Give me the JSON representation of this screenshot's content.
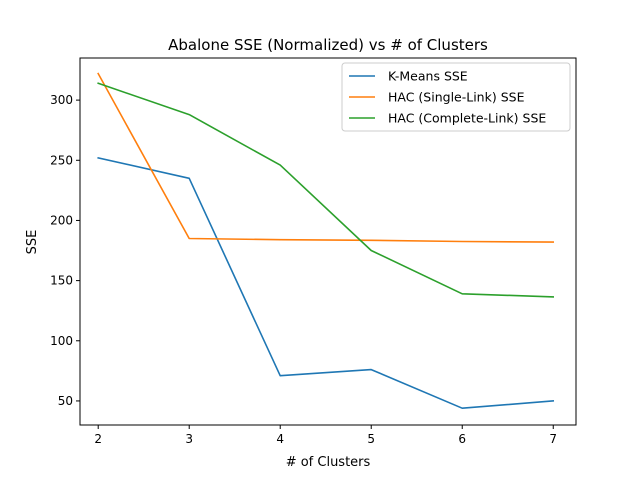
{
  "chart_data": {
    "type": "line",
    "title": "Abalone SSE (Normalized) vs # of Clusters",
    "xlabel": "# of Clusters",
    "ylabel": "SSE",
    "x": [
      2,
      3,
      4,
      5,
      6,
      7
    ],
    "xlim": [
      1.8,
      7.25
    ],
    "ylim": [
      30,
      335
    ],
    "xticks": [
      2,
      3,
      4,
      5,
      6,
      7
    ],
    "yticks": [
      50,
      100,
      150,
      200,
      250,
      300
    ],
    "grid": false,
    "legend_position": "top-right",
    "series": [
      {
        "name": "K-Means SSE",
        "color": "#1f77b4",
        "values": [
          252,
          235,
          71,
          76,
          44,
          50
        ]
      },
      {
        "name": "HAC (Single-Link) SSE",
        "color": "#ff7f0e",
        "values": [
          322,
          185,
          184,
          183.5,
          182.5,
          182
        ]
      },
      {
        "name": "HAC (Complete-Link) SSE",
        "color": "#2ca02c",
        "values": [
          314,
          288,
          246,
          175,
          139,
          136.5
        ]
      }
    ]
  }
}
